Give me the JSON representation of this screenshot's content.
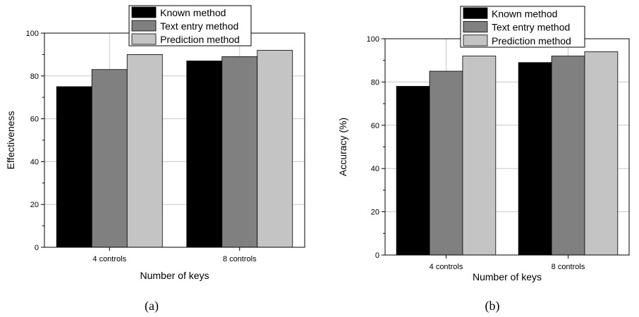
{
  "chart_data": [
    {
      "type": "bar",
      "caption": "(a)",
      "categories": [
        "4 controls",
        "8 controls"
      ],
      "series": [
        {
          "name": "Known method",
          "color": "#000000",
          "values": [
            75,
            87
          ]
        },
        {
          "name": "Text entry method",
          "color": "#808080",
          "values": [
            83,
            89
          ]
        },
        {
          "name": "Prediction method",
          "color": "#c4c4c4",
          "values": [
            90,
            92
          ]
        }
      ],
      "title": "",
      "xlabel": "Number of keys",
      "ylabel": "Effectiveness",
      "ylim": [
        0,
        100
      ],
      "yticks": [
        "0",
        "20",
        "40",
        "60",
        "80",
        "100"
      ],
      "grid": true,
      "legend": "top"
    },
    {
      "type": "bar",
      "caption": "(b)",
      "categories": [
        "4 controls",
        "8 controls"
      ],
      "series": [
        {
          "name": "Known method",
          "color": "#000000",
          "values": [
            78,
            89
          ]
        },
        {
          "name": "Text entry method",
          "color": "#808080",
          "values": [
            85,
            92
          ]
        },
        {
          "name": "Prediction method",
          "color": "#c4c4c4",
          "values": [
            92,
            94
          ]
        }
      ],
      "title": "",
      "xlabel": "Number of keys",
      "ylabel": "Accuracy (%)",
      "ylim": [
        0,
        100
      ],
      "yticks": [
        "0",
        "20",
        "40",
        "60",
        "80",
        "100"
      ],
      "grid": true,
      "legend": "top"
    }
  ]
}
